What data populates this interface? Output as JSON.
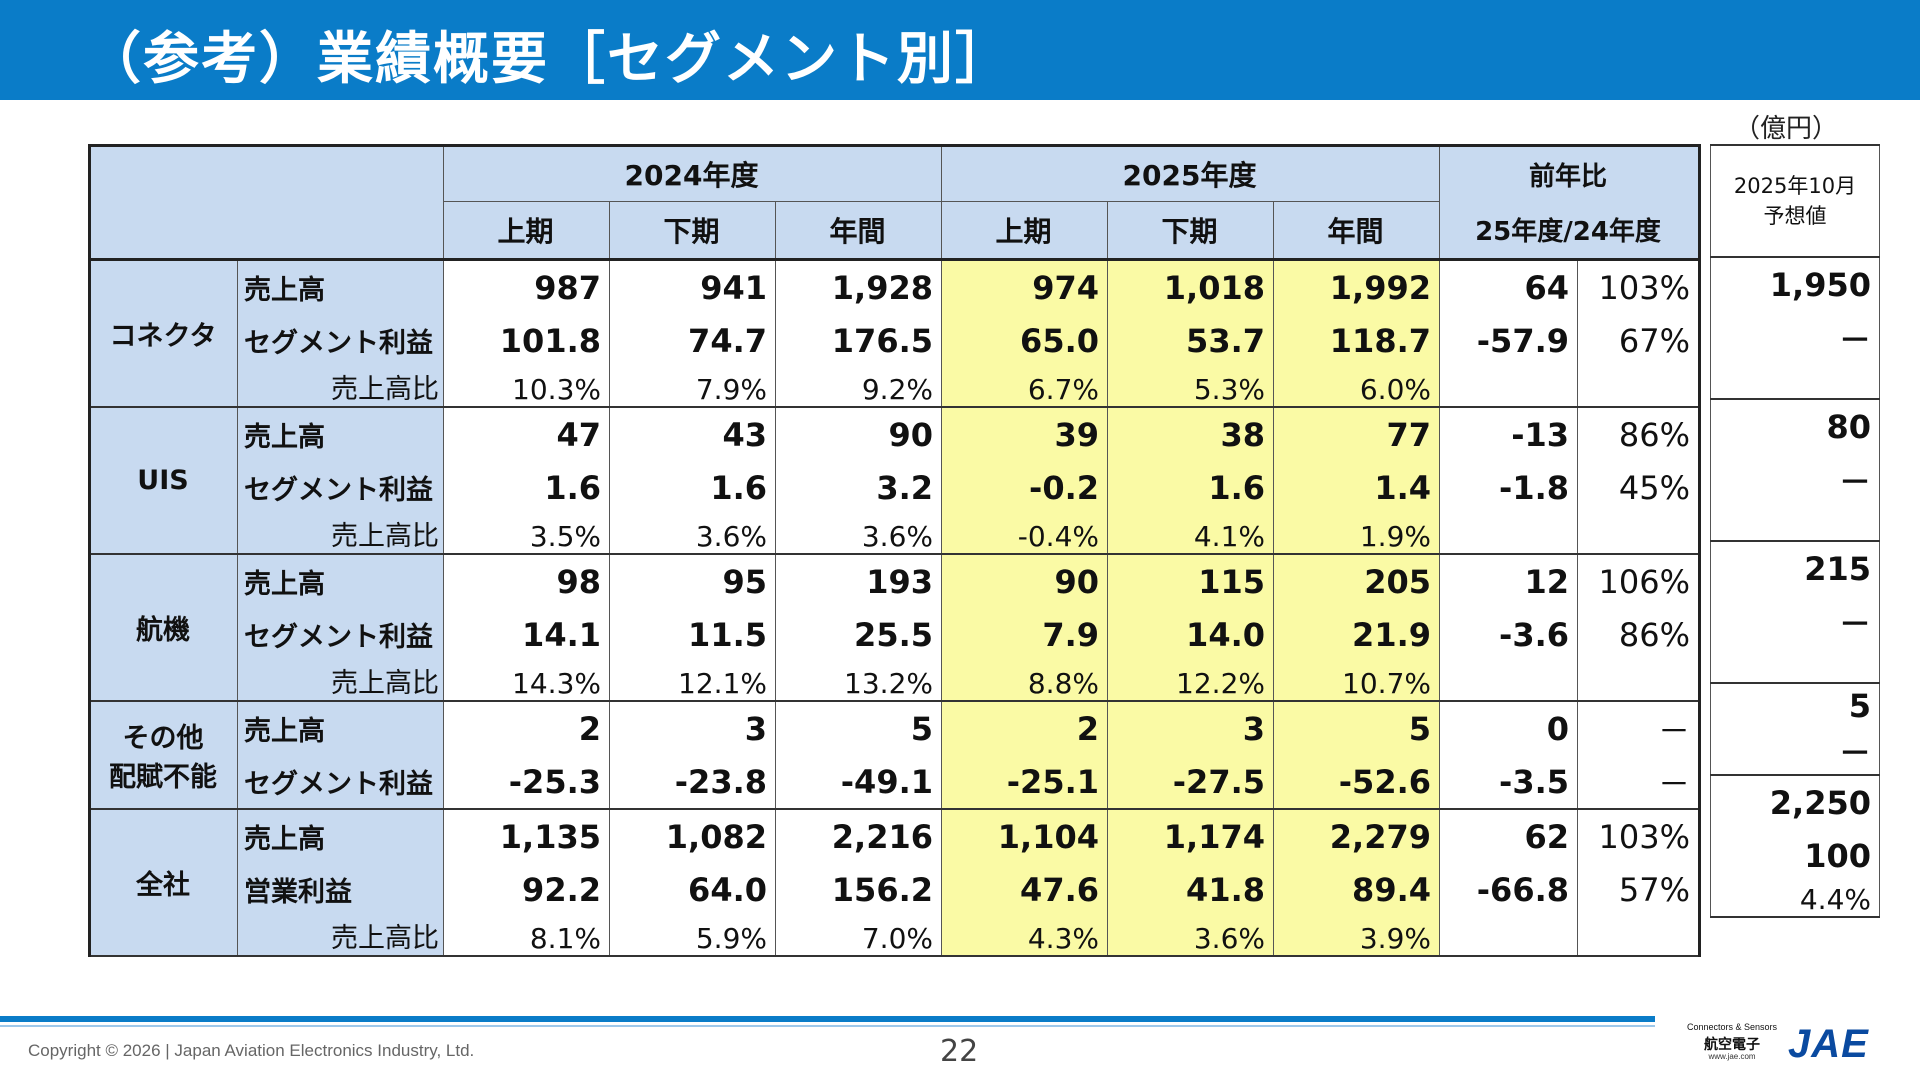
{
  "title": "（参考）業績概要［セグメント別］",
  "unit": "（億円）",
  "header": {
    "fy2024": "2024年度",
    "fy2025": "2025年度",
    "yoy": "前年比",
    "yoy_sub": "25年度/24年度",
    "h1": "上期",
    "h2": "下期",
    "full": "年間",
    "forecast_line1": "2025年10月",
    "forecast_line2": "予想値"
  },
  "segments": [
    {
      "name": "コネクタ",
      "rows": [
        {
          "label": "売上高",
          "v": [
            "987",
            "941",
            "1,928",
            "974",
            "1,018",
            "1,992"
          ],
          "diff": "64",
          "pct": "103%",
          "fc": "1,950"
        },
        {
          "label": "セグメント利益",
          "v": [
            "101.8",
            "74.7",
            "176.5",
            "65.0",
            "53.7",
            "118.7"
          ],
          "diff": "-57.9",
          "pct": "67%",
          "fc": "－"
        },
        {
          "label": "売上高比",
          "v": [
            "10.3%",
            "7.9%",
            "9.2%",
            "6.7%",
            "5.3%",
            "6.0%"
          ],
          "diff": "",
          "pct": "",
          "fc": ""
        }
      ]
    },
    {
      "name": "UIS",
      "rows": [
        {
          "label": "売上高",
          "v": [
            "47",
            "43",
            "90",
            "39",
            "38",
            "77"
          ],
          "diff": "-13",
          "pct": "86%",
          "fc": "80"
        },
        {
          "label": "セグメント利益",
          "v": [
            "1.6",
            "1.6",
            "3.2",
            "-0.2",
            "1.6",
            "1.4"
          ],
          "diff": "-1.8",
          "pct": "45%",
          "fc": "－"
        },
        {
          "label": "売上高比",
          "v": [
            "3.5%",
            "3.6%",
            "3.6%",
            "-0.4%",
            "4.1%",
            "1.9%"
          ],
          "diff": "",
          "pct": "",
          "fc": ""
        }
      ]
    },
    {
      "name": "航機",
      "rows": [
        {
          "label": "売上高",
          "v": [
            "98",
            "95",
            "193",
            "90",
            "115",
            "205"
          ],
          "diff": "12",
          "pct": "106%",
          "fc": "215"
        },
        {
          "label": "セグメント利益",
          "v": [
            "14.1",
            "11.5",
            "25.5",
            "7.9",
            "14.0",
            "21.9"
          ],
          "diff": "-3.6",
          "pct": "86%",
          "fc": "－"
        },
        {
          "label": "売上高比",
          "v": [
            "14.3%",
            "12.1%",
            "13.2%",
            "8.8%",
            "12.2%",
            "10.7%"
          ],
          "diff": "",
          "pct": "",
          "fc": ""
        }
      ]
    },
    {
      "name_line1": "その他",
      "name_line2": "配賦不能",
      "rows": [
        {
          "label": "売上高",
          "v": [
            "2",
            "3",
            "5",
            "2",
            "3",
            "5"
          ],
          "diff": "0",
          "pct": "－",
          "fc": "5"
        },
        {
          "label": "セグメント利益",
          "v": [
            "-25.3",
            "-23.8",
            "-49.1",
            "-25.1",
            "-27.5",
            "-52.6"
          ],
          "diff": "-3.5",
          "pct": "－",
          "fc": "－"
        }
      ]
    },
    {
      "name": "全社",
      "rows": [
        {
          "label": "売上高",
          "v": [
            "1,135",
            "1,082",
            "2,216",
            "1,104",
            "1,174",
            "2,279"
          ],
          "diff": "62",
          "pct": "103%",
          "fc": "2,250"
        },
        {
          "label": "営業利益",
          "v": [
            "92.2",
            "64.0",
            "156.2",
            "47.6",
            "41.8",
            "89.4"
          ],
          "diff": "-66.8",
          "pct": "57%",
          "fc": "100"
        },
        {
          "label": "売上高比",
          "v": [
            "8.1%",
            "5.9%",
            "7.0%",
            "4.3%",
            "3.6%",
            "3.9%"
          ],
          "diff": "",
          "pct": "",
          "fc": "4.4%"
        }
      ]
    }
  ],
  "footer": {
    "copyright": "Copyright © 2026 | Japan Aviation Electronics Industry, Ltd.",
    "page": "22",
    "logo_tagline": "Connectors & Sensors",
    "logo_jp": "航空電子",
    "logo_url": "www.jae.com",
    "logo_brand": "JAE"
  },
  "colors": {
    "title_bar": "#0a7cc8",
    "header_fill": "#c8daf0",
    "highlight_fill": "#fafaa5"
  }
}
